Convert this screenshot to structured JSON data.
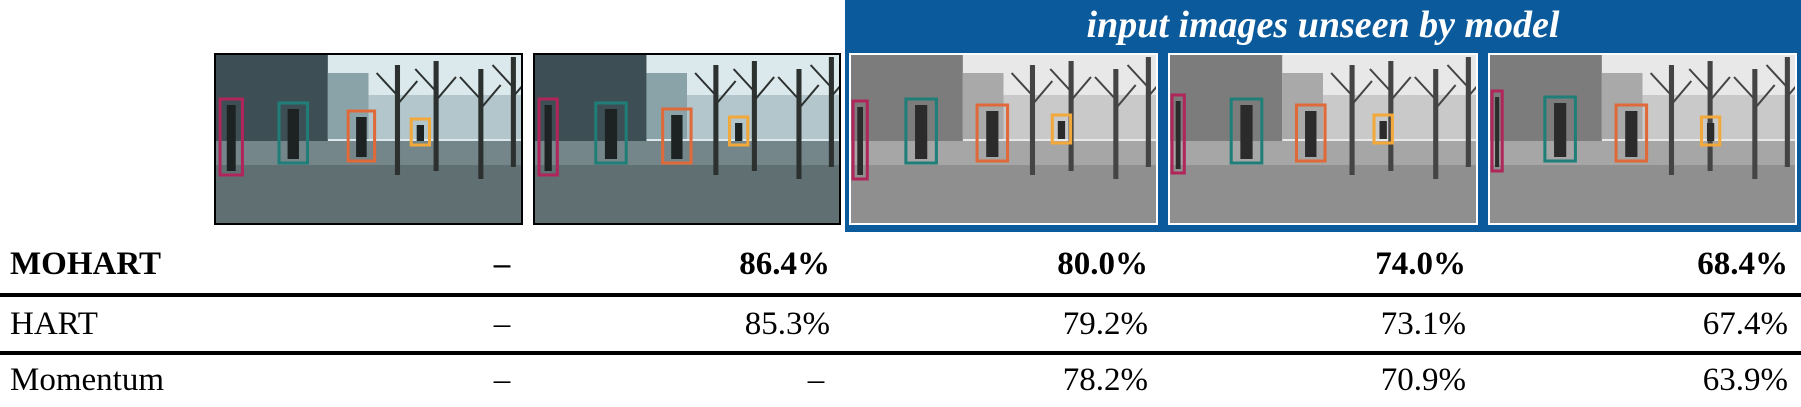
{
  "banner": {
    "title": "input images unseen by model",
    "color": "#0b5a9b"
  },
  "frames": [
    {
      "id": "frame-1",
      "grayscale": false,
      "inside_banner": false
    },
    {
      "id": "frame-2",
      "grayscale": false,
      "inside_banner": false
    },
    {
      "id": "frame-3",
      "grayscale": true,
      "inside_banner": true
    },
    {
      "id": "frame-4",
      "grayscale": true,
      "inside_banner": true
    },
    {
      "id": "frame-5",
      "grayscale": true,
      "inside_banner": true
    }
  ],
  "box_colors": {
    "magenta": "#b0265a",
    "teal": "#1f7f78",
    "orange": "#e0693a",
    "yellow": "#f2a83a"
  },
  "table": {
    "rows": [
      {
        "label": "MOHART",
        "bold": true,
        "c1": "–",
        "c2": "86.4%",
        "c3": "80.0%",
        "c4": "74.0%",
        "c5": "68.4%"
      },
      {
        "label": "HART",
        "bold": false,
        "c1": "–",
        "c2": "85.3%",
        "c3": "79.2%",
        "c4": "73.1%",
        "c5": "67.4%"
      },
      {
        "label": "Momentum",
        "bold": false,
        "c1": "–",
        "c2": "–",
        "c3": "78.2%",
        "c4": "70.9%",
        "c5": "63.9%"
      }
    ]
  }
}
